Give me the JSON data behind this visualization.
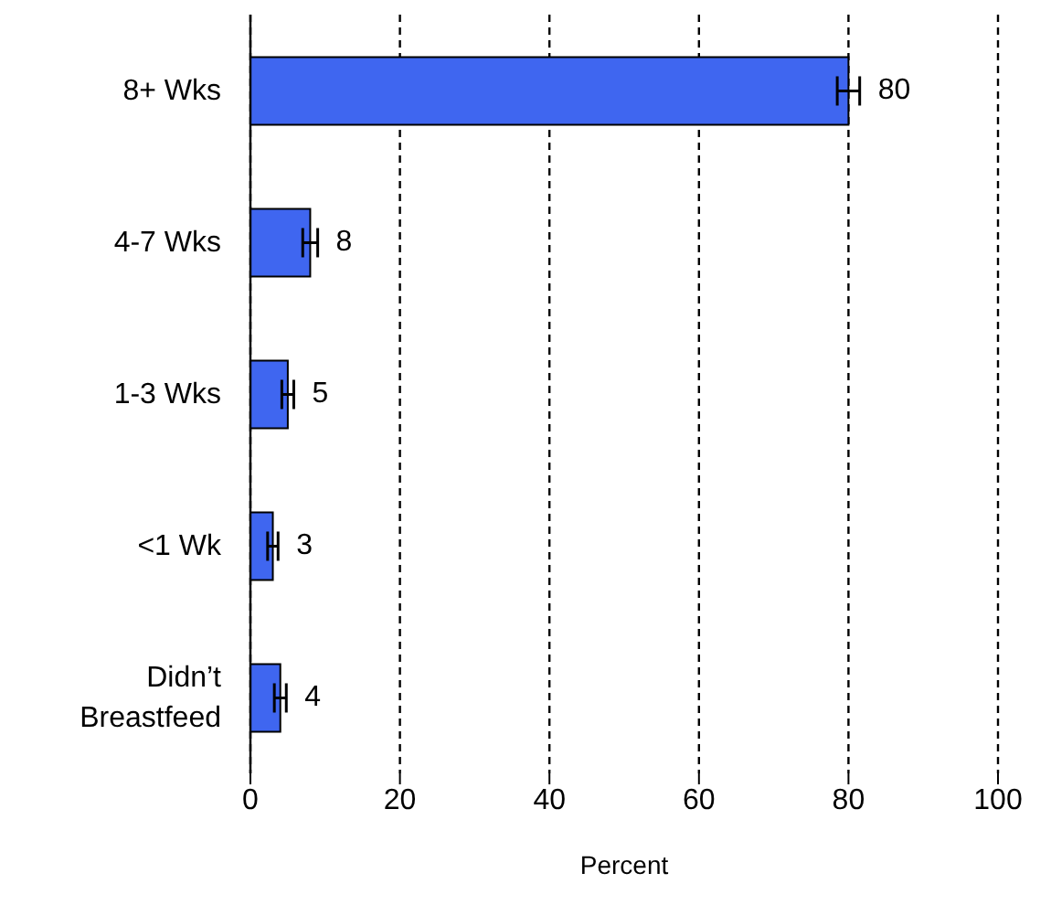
{
  "chart_data": {
    "type": "bar",
    "orientation": "horizontal",
    "xlabel": "Percent",
    "categories": [
      "8+ Wks",
      "4-7 Wks",
      "1-3 Wks",
      "<1 Wk",
      "Didn’t Breastfeed"
    ],
    "values": [
      80,
      8,
      5,
      3,
      4
    ],
    "errors": [
      1.5,
      1,
      0.8,
      0.7,
      0.8
    ],
    "color": "#3f66f0",
    "xlim": [
      0,
      100
    ],
    "xticks": [
      0,
      20,
      40,
      60,
      80,
      100
    ],
    "grid": "x",
    "data_labels": true
  }
}
